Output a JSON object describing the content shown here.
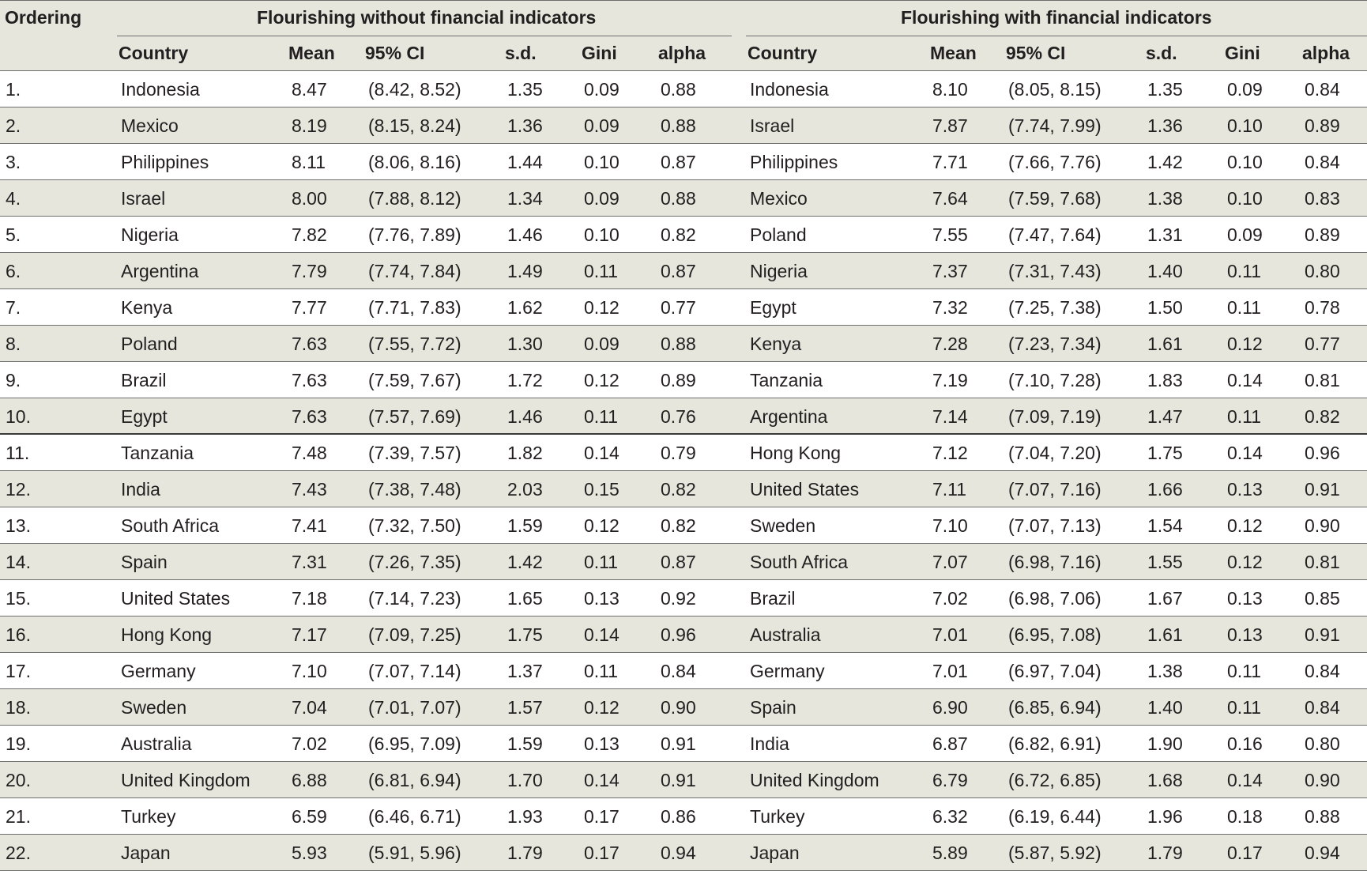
{
  "header": {
    "ordering": "Ordering",
    "group_left": "Flourishing without financial indicators",
    "group_right": "Flourishing with financial indicators",
    "columns": [
      "Country",
      "Mean",
      "95% CI",
      "s.d.",
      "Gini",
      "alpha"
    ]
  },
  "rows": [
    {
      "order": "1.",
      "l": [
        "Indonesia",
        "8.47",
        "(8.42, 8.52)",
        "1.35",
        "0.09",
        "0.88"
      ],
      "r": [
        "Indonesia",
        "8.10",
        "(8.05, 8.15)",
        "1.35",
        "0.09",
        "0.84"
      ]
    },
    {
      "order": "2.",
      "l": [
        "Mexico",
        "8.19",
        "(8.15, 8.24)",
        "1.36",
        "0.09",
        "0.88"
      ],
      "r": [
        "Israel",
        "7.87",
        "(7.74, 7.99)",
        "1.36",
        "0.10",
        "0.89"
      ]
    },
    {
      "order": "3.",
      "l": [
        "Philippines",
        "8.11",
        "(8.06, 8.16)",
        "1.44",
        "0.10",
        "0.87"
      ],
      "r": [
        "Philippines",
        "7.71",
        "(7.66, 7.76)",
        "1.42",
        "0.10",
        "0.84"
      ]
    },
    {
      "order": "4.",
      "l": [
        "Israel",
        "8.00",
        "(7.88, 8.12)",
        "1.34",
        "0.09",
        "0.88"
      ],
      "r": [
        "Mexico",
        "7.64",
        "(7.59, 7.68)",
        "1.38",
        "0.10",
        "0.83"
      ]
    },
    {
      "order": "5.",
      "l": [
        "Nigeria",
        "7.82",
        "(7.76, 7.89)",
        "1.46",
        "0.10",
        "0.82"
      ],
      "r": [
        "Poland",
        "7.55",
        "(7.47, 7.64)",
        "1.31",
        "0.09",
        "0.89"
      ]
    },
    {
      "order": "6.",
      "l": [
        "Argentina",
        "7.79",
        "(7.74, 7.84)",
        "1.49",
        "0.11",
        "0.87"
      ],
      "r": [
        "Nigeria",
        "7.37",
        "(7.31, 7.43)",
        "1.40",
        "0.11",
        "0.80"
      ]
    },
    {
      "order": "7.",
      "l": [
        "Kenya",
        "7.77",
        "(7.71, 7.83)",
        "1.62",
        "0.12",
        "0.77"
      ],
      "r": [
        "Egypt",
        "7.32",
        "(7.25, 7.38)",
        "1.50",
        "0.11",
        "0.78"
      ]
    },
    {
      "order": "8.",
      "l": [
        "Poland",
        "7.63",
        "(7.55, 7.72)",
        "1.30",
        "0.09",
        "0.88"
      ],
      "r": [
        "Kenya",
        "7.28",
        "(7.23, 7.34)",
        "1.61",
        "0.12",
        "0.77"
      ]
    },
    {
      "order": "9.",
      "l": [
        "Brazil",
        "7.63",
        "(7.59, 7.67)",
        "1.72",
        "0.12",
        "0.89"
      ],
      "r": [
        "Tanzania",
        "7.19",
        "(7.10, 7.28)",
        "1.83",
        "0.14",
        "0.81"
      ]
    },
    {
      "order": "10.",
      "l": [
        "Egypt",
        "7.63",
        "(7.57, 7.69)",
        "1.46",
        "0.11",
        "0.76"
      ],
      "r": [
        "Argentina",
        "7.14",
        "(7.09, 7.19)",
        "1.47",
        "0.11",
        "0.82"
      ]
    },
    {
      "order": "11.",
      "l": [
        "Tanzania",
        "7.48",
        "(7.39, 7.57)",
        "1.82",
        "0.14",
        "0.79"
      ],
      "r": [
        "Hong Kong",
        "7.12",
        "(7.04, 7.20)",
        "1.75",
        "0.14",
        "0.96"
      ]
    },
    {
      "order": "12.",
      "l": [
        "India",
        "7.43",
        "(7.38, 7.48)",
        "2.03",
        "0.15",
        "0.82"
      ],
      "r": [
        "United States",
        "7.11",
        "(7.07, 7.16)",
        "1.66",
        "0.13",
        "0.91"
      ]
    },
    {
      "order": "13.",
      "l": [
        "South Africa",
        "7.41",
        "(7.32, 7.50)",
        "1.59",
        "0.12",
        "0.82"
      ],
      "r": [
        "Sweden",
        "7.10",
        "(7.07, 7.13)",
        "1.54",
        "0.12",
        "0.90"
      ]
    },
    {
      "order": "14.",
      "l": [
        "Spain",
        "7.31",
        "(7.26, 7.35)",
        "1.42",
        "0.11",
        "0.87"
      ],
      "r": [
        "South Africa",
        "7.07",
        "(6.98, 7.16)",
        "1.55",
        "0.12",
        "0.81"
      ]
    },
    {
      "order": "15.",
      "l": [
        "United States",
        "7.18",
        "(7.14, 7.23)",
        "1.65",
        "0.13",
        "0.92"
      ],
      "r": [
        "Brazil",
        "7.02",
        "(6.98, 7.06)",
        "1.67",
        "0.13",
        "0.85"
      ]
    },
    {
      "order": "16.",
      "l": [
        "Hong Kong",
        "7.17",
        "(7.09, 7.25)",
        "1.75",
        "0.14",
        "0.96"
      ],
      "r": [
        "Australia",
        "7.01",
        "(6.95, 7.08)",
        "1.61",
        "0.13",
        "0.91"
      ]
    },
    {
      "order": "17.",
      "l": [
        "Germany",
        "7.10",
        "(7.07, 7.14)",
        "1.37",
        "0.11",
        "0.84"
      ],
      "r": [
        "Germany",
        "7.01",
        "(6.97, 7.04)",
        "1.38",
        "0.11",
        "0.84"
      ]
    },
    {
      "order": "18.",
      "l": [
        "Sweden",
        "7.04",
        "(7.01, 7.07)",
        "1.57",
        "0.12",
        "0.90"
      ],
      "r": [
        "Spain",
        "6.90",
        "(6.85, 6.94)",
        "1.40",
        "0.11",
        "0.84"
      ]
    },
    {
      "order": "19.",
      "l": [
        "Australia",
        "7.02",
        "(6.95, 7.09)",
        "1.59",
        "0.13",
        "0.91"
      ],
      "r": [
        "India",
        "6.87",
        "(6.82, 6.91)",
        "1.90",
        "0.16",
        "0.80"
      ]
    },
    {
      "order": "20.",
      "l": [
        "United Kingdom",
        "6.88",
        "(6.81, 6.94)",
        "1.70",
        "0.14",
        "0.91"
      ],
      "r": [
        "United Kingdom",
        "6.79",
        "(6.72, 6.85)",
        "1.68",
        "0.14",
        "0.90"
      ]
    },
    {
      "order": "21.",
      "l": [
        "Turkey",
        "6.59",
        "(6.46, 6.71)",
        "1.93",
        "0.17",
        "0.86"
      ],
      "r": [
        "Turkey",
        "6.32",
        "(6.19, 6.44)",
        "1.96",
        "0.18",
        "0.88"
      ]
    },
    {
      "order": "22.",
      "l": [
        "Japan",
        "5.93",
        "(5.91, 5.96)",
        "1.79",
        "0.17",
        "0.94"
      ],
      "r": [
        "Japan",
        "5.89",
        "(5.87, 5.92)",
        "1.79",
        "0.17",
        "0.94"
      ]
    }
  ]
}
